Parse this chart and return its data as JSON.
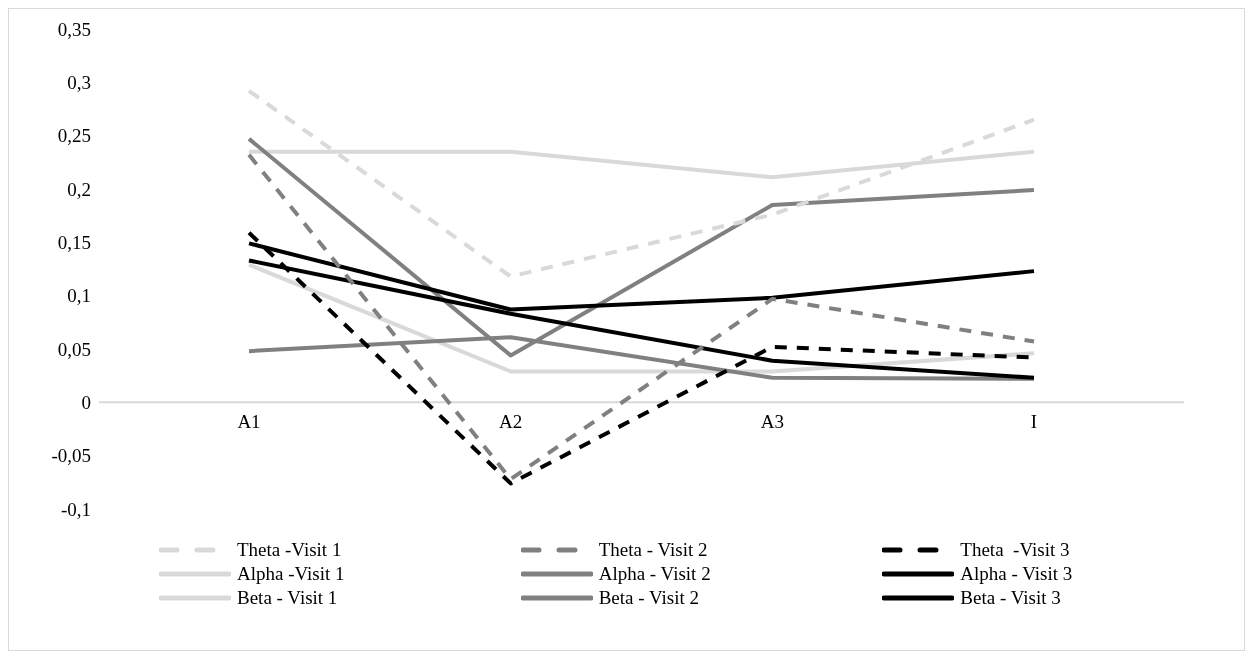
{
  "chart_data": {
    "type": "line",
    "categories": [
      "A1",
      "A2",
      "A3",
      "I"
    ],
    "ylim": [
      -0.1,
      0.35
    ],
    "yticks": [
      {
        "value": -0.1,
        "label": "-0,1"
      },
      {
        "value": -0.05,
        "label": "-0,05"
      },
      {
        "value": 0,
        "label": "0"
      },
      {
        "value": 0.05,
        "label": "0,05"
      },
      {
        "value": 0.1,
        "label": "0,1"
      },
      {
        "value": 0.15,
        "label": "0,15"
      },
      {
        "value": 0.2,
        "label": "0,2"
      },
      {
        "value": 0.25,
        "label": "0,25"
      },
      {
        "value": 0.3,
        "label": "0,3"
      },
      {
        "value": 0.35,
        "label": "0,35"
      }
    ],
    "grid": false,
    "legend": "bottom",
    "marker": "none",
    "series": [
      {
        "name": "Theta -Visit 1",
        "color": "#d9d9d9",
        "line_style": "dashed",
        "values": [
          0.292,
          0.118,
          0.176,
          0.265
        ]
      },
      {
        "name": "Theta - Visit 2",
        "color": "#808080",
        "line_style": "dashed",
        "values": [
          0.232,
          -0.072,
          0.097,
          0.057
        ]
      },
      {
        "name": "Theta  -Visit 3",
        "color": "#000000",
        "line_style": "dashed",
        "values": [
          0.159,
          -0.076,
          0.052,
          0.042
        ]
      },
      {
        "name": "Alpha -Visit 1",
        "color": "#d9d9d9",
        "line_style": "solid",
        "values": [
          0.235,
          0.235,
          0.211,
          0.235
        ]
      },
      {
        "name": "Alpha - Visit 2",
        "color": "#808080",
        "line_style": "solid",
        "values": [
          0.247,
          0.044,
          0.185,
          0.199
        ]
      },
      {
        "name": "Alpha - Visit 3",
        "color": "#000000",
        "line_style": "solid",
        "values": [
          0.149,
          0.087,
          0.098,
          0.123
        ]
      },
      {
        "name": "Beta - Visit 1",
        "color": "#d9d9d9",
        "line_style": "solid",
        "values": [
          0.129,
          0.029,
          0.029,
          0.046
        ]
      },
      {
        "name": "Beta - Visit 2",
        "color": "#808080",
        "line_style": "solid",
        "values": [
          0.048,
          0.061,
          0.023,
          0.022
        ]
      },
      {
        "name": "Beta - Visit 3",
        "color": "#000000",
        "line_style": "solid",
        "values": [
          0.133,
          0.083,
          0.039,
          0.023
        ]
      }
    ]
  }
}
